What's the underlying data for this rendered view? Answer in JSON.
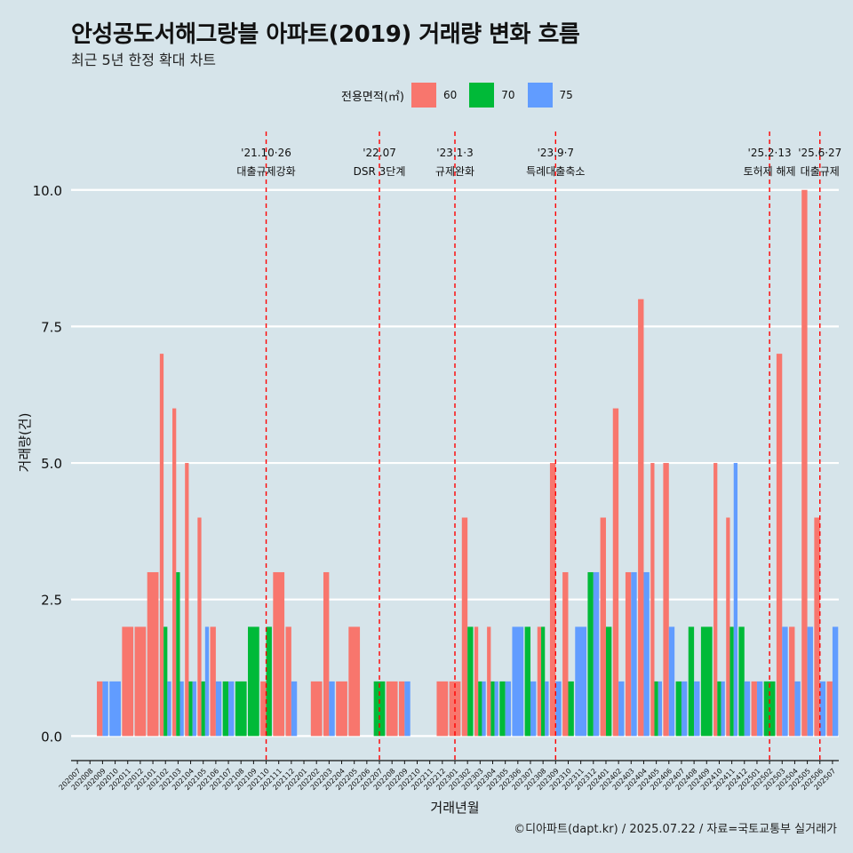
{
  "title": "안성공도서해그랑블 아파트(2019) 거래량 변화 흐름",
  "subtitle": "최근 5년 한정 확대 차트",
  "caption": "©디아파트(dapt.kr) / 2025.07.22 / 자료=국토교통부 실거래가",
  "colors": {
    "background": "#d6e4ea",
    "s60": "#f8766d",
    "s70": "#00ba38",
    "s75": "#619cff",
    "grid": "#ffffff",
    "event_line": "#ff0000"
  },
  "chart_data": {
    "type": "bar",
    "xlabel": "거래년월",
    "ylabel": "거래량(건)",
    "ylim": [
      -0.45,
      11.2
    ],
    "yticks": [
      0,
      2.5,
      5,
      7.5,
      10
    ],
    "ytick_labels": [
      "0.0",
      "2.5",
      "5.0",
      "7.5",
      "10.0"
    ],
    "legend": {
      "title": "전용면적(㎡)",
      "position": "top"
    },
    "categories": [
      "202007",
      "202008",
      "202009",
      "202010",
      "202011",
      "202012",
      "202101",
      "202102",
      "202103",
      "202104",
      "202105",
      "202106",
      "202107",
      "202108",
      "202109",
      "202110",
      "202111",
      "202112",
      "202201",
      "202202",
      "202203",
      "202204",
      "202205",
      "202206",
      "202207",
      "202208",
      "202209",
      "202210",
      "202211",
      "202212",
      "202301",
      "202302",
      "202303",
      "202304",
      "202305",
      "202306",
      "202307",
      "202308",
      "202309",
      "202310",
      "202311",
      "202312",
      "202401",
      "202402",
      "202403",
      "202404",
      "202405",
      "202406",
      "202407",
      "202408",
      "202409",
      "202410",
      "202411",
      "202412",
      "202501",
      "202502",
      "202503",
      "202504",
      "202505",
      "202506",
      "202507"
    ],
    "series": [
      {
        "name": "60",
        "values": [
          0,
          0,
          1,
          0,
          2,
          2,
          3,
          7,
          6,
          5,
          4,
          2,
          0,
          0,
          0,
          1,
          3,
          2,
          0,
          1,
          3,
          1,
          2,
          0,
          0,
          1,
          1,
          0,
          0,
          1,
          1,
          4,
          2,
          2,
          0,
          0,
          0,
          2,
          5,
          3,
          0,
          0,
          4,
          6,
          3,
          8,
          5,
          5,
          0,
          0,
          0,
          5,
          4,
          0,
          1,
          0,
          7,
          2,
          10,
          4,
          1
        ]
      },
      {
        "name": "70",
        "values": [
          0,
          0,
          0,
          0,
          0,
          0,
          0,
          2,
          3,
          1,
          1,
          0,
          1,
          1,
          2,
          2,
          0,
          0,
          0,
          0,
          0,
          0,
          0,
          0,
          1,
          0,
          0,
          0,
          0,
          0,
          0,
          2,
          1,
          1,
          1,
          0,
          2,
          2,
          0,
          1,
          0,
          3,
          2,
          0,
          0,
          0,
          1,
          0,
          1,
          2,
          2,
          1,
          2,
          2,
          0,
          1,
          0,
          0,
          0,
          0,
          0
        ]
      },
      {
        "name": "75",
        "values": [
          0,
          0,
          1,
          1,
          0,
          0,
          0,
          1,
          1,
          1,
          2,
          1,
          1,
          0,
          0,
          0,
          0,
          1,
          0,
          0,
          1,
          0,
          0,
          0,
          0,
          0,
          1,
          0,
          0,
          0,
          0,
          0,
          1,
          1,
          1,
          2,
          1,
          1,
          1,
          0,
          2,
          3,
          0,
          1,
          3,
          3,
          1,
          2,
          1,
          1,
          0,
          1,
          5,
          1,
          1,
          0,
          2,
          1,
          2,
          1,
          2
        ]
      }
    ],
    "events": [
      {
        "month": "202110",
        "date": "'21.10·26",
        "label": "대출규제강화"
      },
      {
        "month": "202207",
        "date": "'22.07",
        "label": "DSR 3단계"
      },
      {
        "month": "202301",
        "date": "'23.1·3",
        "label": "규제완화"
      },
      {
        "month": "202309",
        "date": "'23.9·7",
        "label": "특례대출축소"
      },
      {
        "month": "202502",
        "date": "'25.2·13",
        "label": "토허제 해제"
      },
      {
        "month": "202506",
        "date": "'25.6·27",
        "label": "대출규제"
      }
    ]
  }
}
